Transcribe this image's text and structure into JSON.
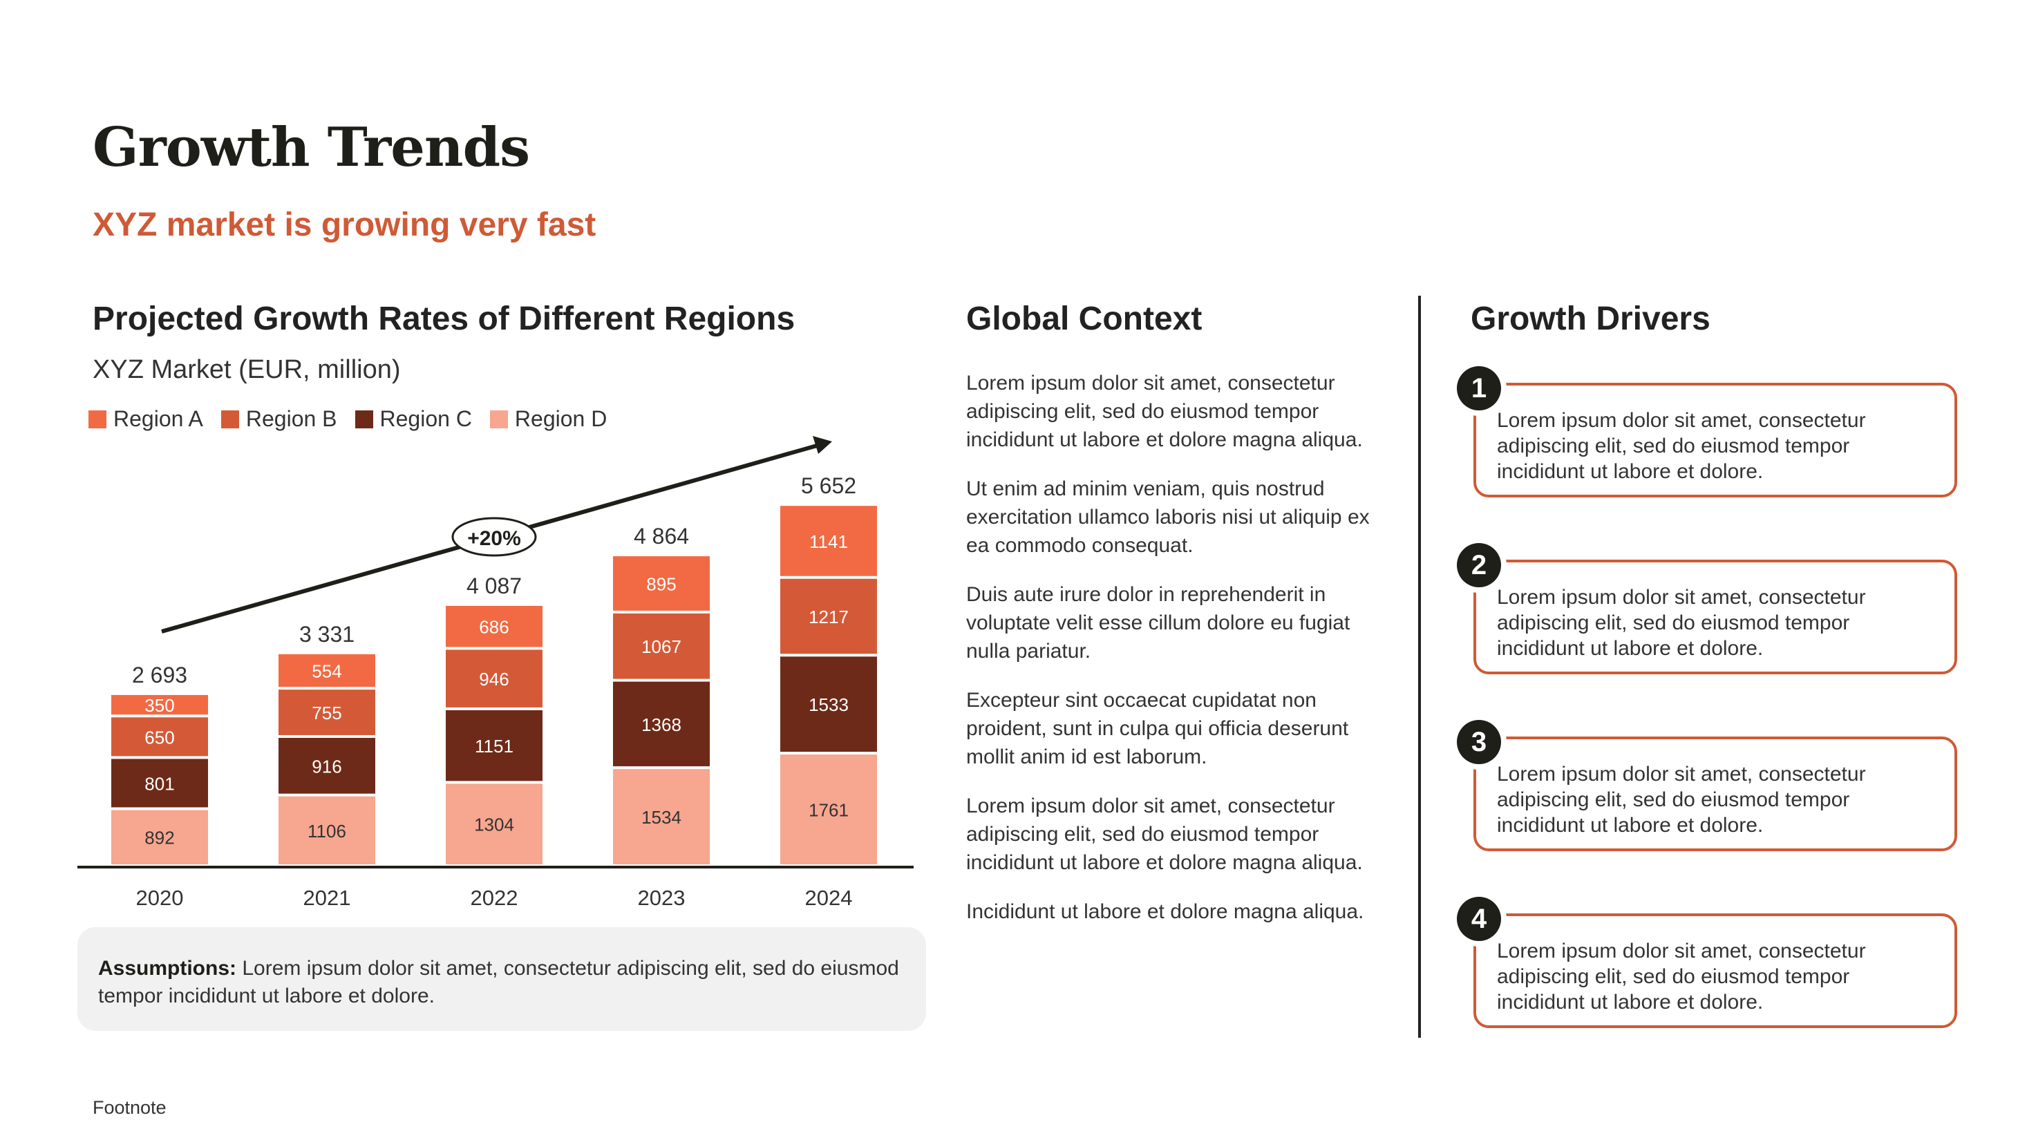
{
  "title": "Growth Trends",
  "subtitle": "XYZ market is growing very fast",
  "chart_data": {
    "type": "bar",
    "stacked": true,
    "title": "Projected Growth Rates of Different Regions",
    "subtitle": "XYZ Market (EUR, million)",
    "categories": [
      "2020",
      "2021",
      "2022",
      "2023",
      "2024"
    ],
    "series": [
      {
        "name": "Region D",
        "color": "#f7a68f",
        "values": [
          892,
          1106,
          1304,
          1534,
          1761
        ]
      },
      {
        "name": "Region C",
        "color": "#6e2a18",
        "values": [
          801,
          916,
          1151,
          1368,
          1533
        ]
      },
      {
        "name": "Region B",
        "color": "#d45a37",
        "values": [
          650,
          755,
          946,
          1067,
          1217
        ]
      },
      {
        "name": "Region A",
        "color": "#f26a43",
        "values": [
          350,
          554,
          686,
          895,
          1141
        ]
      }
    ],
    "totals": [
      "2 693",
      "3 331",
      "4 087",
      "4 864",
      "5 652"
    ],
    "annotation": "+20%",
    "legend": [
      "Region A",
      "Region B",
      "Region C",
      "Region D"
    ],
    "legend_colors": [
      "#f26a43",
      "#d45a37",
      "#6e2a18",
      "#f7a68f"
    ],
    "legend_position": "top-left",
    "grid": false
  },
  "assumptions": {
    "label": "Assumptions:",
    "text": " Lorem ipsum dolor sit amet, consectetur adipiscing elit, sed do eiusmod tempor incididunt ut labore et dolore."
  },
  "global_context": {
    "heading": "Global Context",
    "paragraphs": [
      "Lorem ipsum dolor sit amet, consectetur adipiscing elit, sed do eiusmod tempor incididunt ut labore et dolore magna aliqua.",
      "Ut enim ad minim veniam, quis nostrud exercitation ullamco laboris nisi ut aliquip ex ea commodo consequat.",
      "Duis aute irure dolor in reprehenderit in voluptate velit esse cillum dolore eu fugiat nulla pariatur.",
      "Excepteur sint occaecat cupidatat non proident, sunt in culpa qui officia deserunt mollit anim id est laborum.",
      "Lorem ipsum dolor sit amet, consectetur adipiscing elit, sed do eiusmod tempor incididunt ut labore et dolore magna aliqua.",
      "Incididunt ut labore et dolore magna aliqua."
    ]
  },
  "growth_drivers": {
    "heading": "Growth Drivers",
    "items": [
      {
        "num": "1",
        "text": "Lorem ipsum dolor sit amet, consectetur adipiscing elit, sed do eiusmod tempor incididunt ut labore et dolore."
      },
      {
        "num": "2",
        "text": "Lorem ipsum dolor sit amet, consectetur adipiscing elit, sed do eiusmod tempor incididunt ut labore et dolore."
      },
      {
        "num": "3",
        "text": "Lorem ipsum dolor sit amet, consectetur adipiscing elit, sed do eiusmod tempor incididunt ut labore et dolore."
      },
      {
        "num": "4",
        "text": "Lorem ipsum dolor sit amet, consectetur adipiscing elit, sed do eiusmod tempor incididunt ut labore et dolore."
      }
    ]
  },
  "footnote": "Footnote"
}
